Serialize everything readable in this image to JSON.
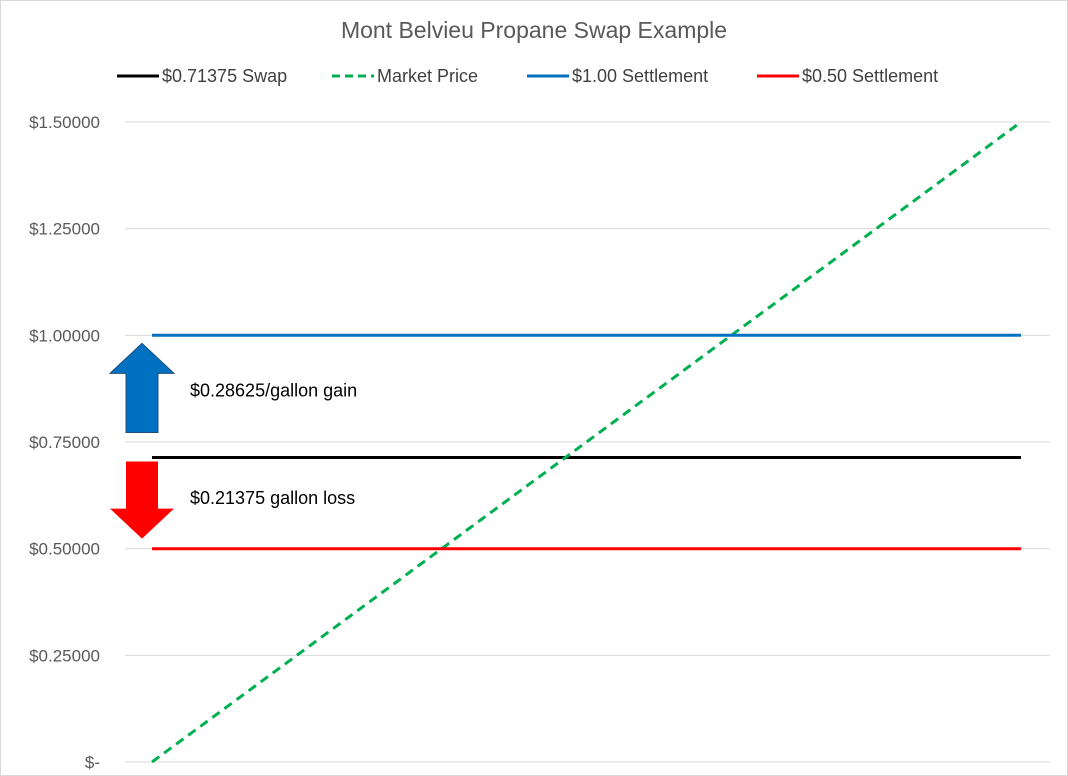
{
  "chart_data": {
    "type": "line",
    "title": "Mont Belvieu Propane Swap Example",
    "xlabel": "",
    "ylabel": "",
    "ylim": [
      0,
      1.5
    ],
    "y_ticks": [
      {
        "value": 0,
        "label": "$-"
      },
      {
        "value": 0.25,
        "label": "$0.25000"
      },
      {
        "value": 0.5,
        "label": "$0.50000"
      },
      {
        "value": 0.75,
        "label": "$0.75000"
      },
      {
        "value": 1.0,
        "label": "$1.00000"
      },
      {
        "value": 1.25,
        "label": "$1.25000"
      },
      {
        "value": 1.5,
        "label": "$1.50000"
      }
    ],
    "grid": true,
    "legend_position": "top",
    "x_points": 9,
    "series": [
      {
        "name": "$0.71375 Swap",
        "color": "#000000",
        "dash": false,
        "values": [
          0.71375,
          0.71375,
          0.71375,
          0.71375,
          0.71375,
          0.71375,
          0.71375,
          0.71375,
          0.71375
        ]
      },
      {
        "name": "Market Price",
        "color": "#00b050",
        "dash": true,
        "values": [
          0,
          0.1875,
          0.375,
          0.5625,
          0.75,
          0.9375,
          1.125,
          1.3125,
          1.5
        ]
      },
      {
        "name": "$1.00 Settlement",
        "color": "#0070c0",
        "dash": false,
        "values": [
          1.0,
          1.0,
          1.0,
          1.0,
          1.0,
          1.0,
          1.0,
          1.0,
          1.0
        ]
      },
      {
        "name": "$0.50 Settlement",
        "color": "#ff0000",
        "dash": false,
        "values": [
          0.5,
          0.5,
          0.5,
          0.5,
          0.5,
          0.5,
          0.5,
          0.5,
          0.5
        ]
      }
    ],
    "annotations": [
      {
        "text": "$0.28625/gallon gain",
        "arrow": "up",
        "color": "#0070c0",
        "from": 0.71375,
        "to": 1.0
      },
      {
        "text": "$0.21375 gallon loss",
        "arrow": "down",
        "color": "#ff0000",
        "from": 0.71375,
        "to": 0.5
      }
    ]
  }
}
